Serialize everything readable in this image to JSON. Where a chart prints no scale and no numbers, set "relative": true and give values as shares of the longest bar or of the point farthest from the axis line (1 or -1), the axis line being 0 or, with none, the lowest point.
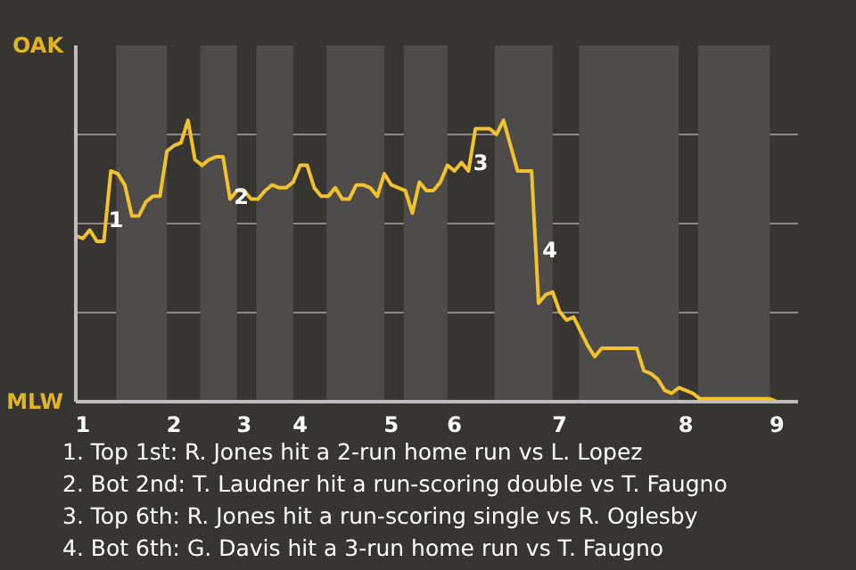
{
  "chart_data": {
    "type": "line",
    "categories": [
      null,
      "1",
      null,
      null,
      null,
      null,
      null,
      null,
      null,
      null,
      null,
      null,
      null,
      null,
      "2",
      null,
      null,
      null,
      null,
      null,
      null,
      null,
      null,
      null,
      "3",
      null,
      null,
      null,
      null,
      null,
      null,
      null,
      "4",
      null,
      null,
      null,
      null,
      null,
      null,
      null,
      null,
      null,
      null,
      null,
      null,
      "5",
      null,
      null,
      null,
      null,
      null,
      null,
      null,
      null,
      "6",
      null,
      null,
      null,
      null,
      null,
      null,
      null,
      null,
      null,
      null,
      null,
      null,
      null,
      null,
      "7",
      null,
      null,
      null,
      null,
      null,
      null,
      null,
      null,
      null,
      null,
      null,
      null,
      null,
      null,
      null,
      null,
      null,
      "8",
      null,
      null,
      null,
      null,
      null,
      null,
      null,
      null,
      null,
      null,
      null,
      null,
      "9",
      null,
      null,
      null
    ],
    "series": [
      {
        "color": "#f2c12e",
        "values": [
          0.59,
          0.58,
          0.61,
          0.57,
          0.57,
          0.82,
          0.81,
          0.77,
          0.66,
          0.66,
          0.71,
          0.73,
          0.73,
          0.89,
          0.91,
          0.92,
          1,
          0.86,
          0.84,
          0.86,
          0.87,
          0.87,
          0.72,
          0.75,
          0.75,
          0.72,
          0.72,
          0.75,
          0.77,
          0.76,
          0.76,
          0.78,
          0.84,
          0.84,
          0.76,
          0.73,
          0.73,
          0.76,
          0.72,
          0.72,
          0.77,
          0.77,
          0.76,
          0.73,
          0.81,
          0.77,
          0.76,
          0.75,
          0.67,
          0.78,
          0.75,
          0.75,
          0.78,
          0.84,
          0.82,
          0.85,
          0.82,
          0.97,
          0.97,
          0.97,
          0.95,
          1,
          0.91,
          0.82,
          0.82,
          0.82,
          0.35,
          0.38,
          0.39,
          0.32,
          0.29,
          0.3,
          0.25,
          0.2,
          0.16,
          0.19,
          0.19,
          0.19,
          0.19,
          0.19,
          0.19,
          0.11,
          0.1,
          0.08,
          0.04,
          0.03,
          0.05,
          0.04,
          0.03,
          0.01,
          0.01,
          0.01,
          0.01,
          0.01,
          0.01,
          0.01,
          0.01,
          0.01,
          0.01,
          0.01,
          0,
          0,
          0,
          0
        ]
      }
    ],
    "relative": true,
    "grid": "y",
    "line_style": "solid",
    "marker": "none",
    "annotations": [
      "OAK",
      "MLW",
      "1",
      "2",
      "3",
      "4",
      "1. Top 1st: R. Jones hit a 2-run home run vs L. Lopez",
      "2. Bot 2nd: T. Laudner hit a run-scoring double vs T. Faugno",
      "3. Top 6th: R. Jones hit a run-scoring single vs R. Oglesby",
      "4. Bot 6th: G. Davis hit a 3-run home run vs T. Faugno"
    ]
  }
}
